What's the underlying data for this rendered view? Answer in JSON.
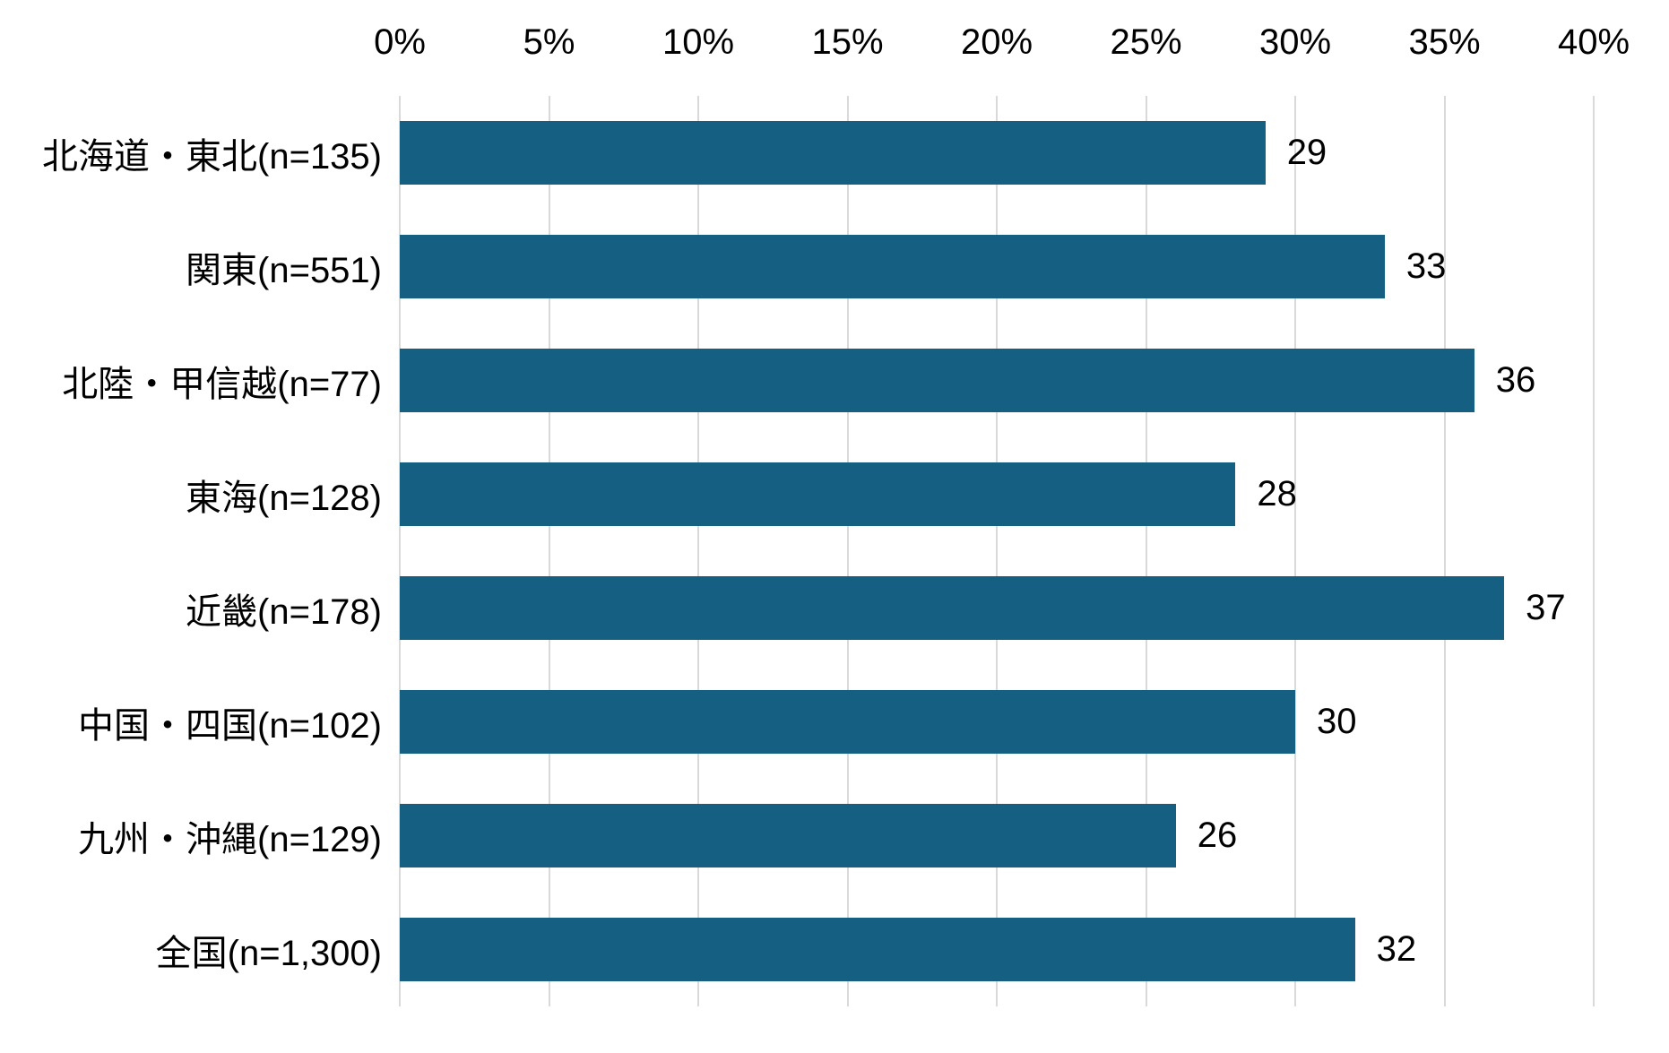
{
  "chart_data": {
    "type": "bar",
    "orientation": "horizontal",
    "title": "",
    "xlabel": "",
    "ylabel": "",
    "categories": [
      "北海道・東北(n=135)",
      "関東(n=551)",
      "北陸・甲信越(n=77)",
      "東海(n=128)",
      "近畿(n=178)",
      "中国・四国(n=102)",
      "九州・沖縄(n=129)",
      "全国(n=1,300)"
    ],
    "values": [
      29,
      33,
      36,
      28,
      37,
      30,
      26,
      32
    ],
    "x_ticks": [
      "0%",
      "5%",
      "10%",
      "15%",
      "20%",
      "25%",
      "30%",
      "35%",
      "40%"
    ],
    "xlim": [
      0,
      40
    ],
    "axis_position": "top",
    "grid": "vertical",
    "legend": "none",
    "colors": {
      "bar": "#156082",
      "gridline": "#d9d9d9",
      "text": "#000000",
      "background": "#ffffff"
    }
  }
}
